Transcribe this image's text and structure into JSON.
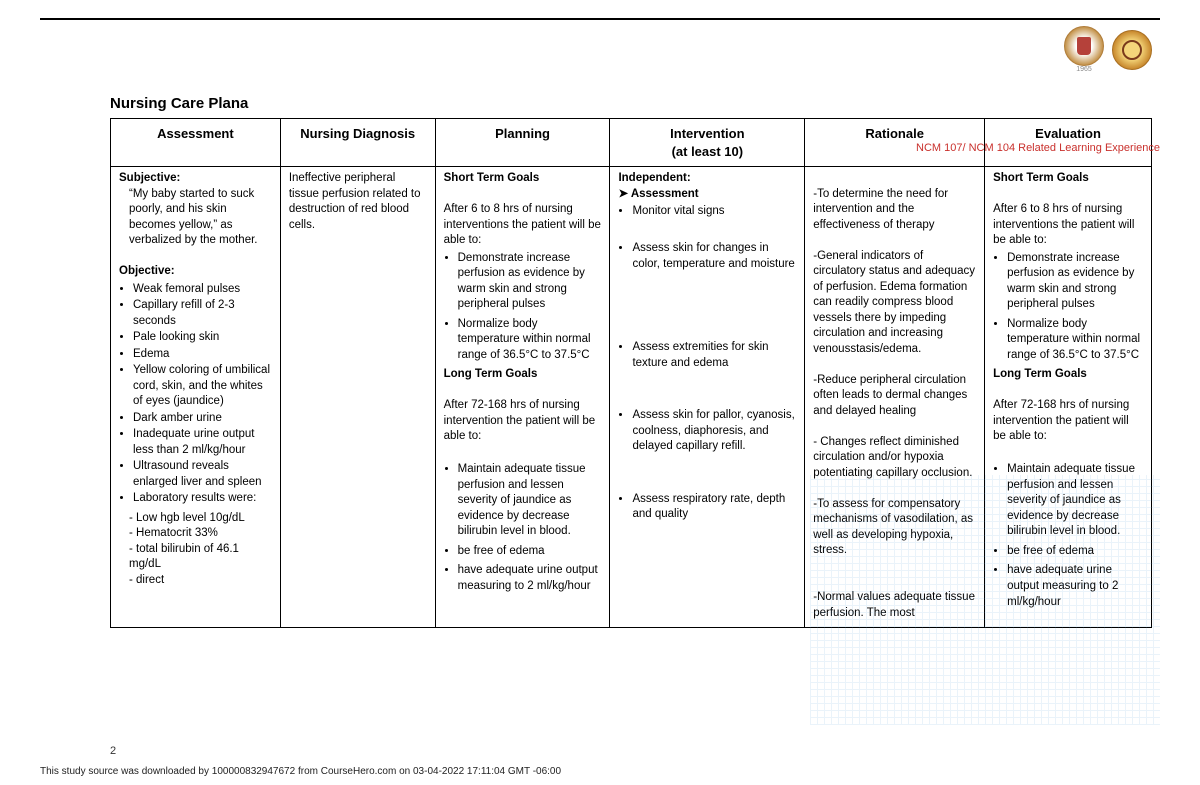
{
  "title": "Nursing Care Plana",
  "header_note": "NCM 107/ NCM 104 Related Learning Experience",
  "logo_year": "1965",
  "page_number": "2",
  "footer": "This study source was downloaded by 100000832947672 from CourseHero.com on 03-04-2022 17:11:04 GMT -06:00",
  "columns": {
    "c1": "Assessment",
    "c2": "Nursing Diagnosis",
    "c3": "Planning",
    "c4_a": "Intervention",
    "c4_b": "(at least 10)",
    "c5": "Rationale",
    "c6": "Evaluation"
  },
  "assessment": {
    "subjective_h": "Subjective:",
    "subjective": "“My baby started to suck poorly, and his skin becomes yellow,” as verbalized by the mother.",
    "objective_h": "Objective:",
    "obj": [
      "Weak femoral pulses",
      "Capillary refill of 2-3 seconds",
      "Pale looking skin",
      "Edema",
      "Yellow coloring of umbilical cord, skin, and the whites of eyes (jaundice)",
      "Dark amber urine",
      "Inadequate urine output less than 2 ml/kg/hour",
      "Ultrasound reveals enlarged liver and spleen",
      "Laboratory results were:"
    ],
    "labs": [
      "- Low hgb level 10g/dL",
      "- Hematocrit 33%",
      "- total bilirubin of 46.1 mg/dL",
      "- direct"
    ]
  },
  "diagnosis": "Ineffective peripheral tissue perfusion related to destruction of red blood cells.",
  "planning": {
    "st_h": "Short Term Goals",
    "st_intro": "After 6 to 8 hrs of nursing interventions the patient will be able to:",
    "st": [
      "Demonstrate increase perfusion as evidence by warm skin and strong peripheral pulses",
      "Normalize body temperature within normal range of 36.5°C to 37.5°C"
    ],
    "lt_h": "Long Term Goals",
    "lt_intro": "After 72-168 hrs of nursing intervention the patient will be able to:",
    "lt": [
      "Maintain adequate tissue perfusion and lessen severity of jaundice as evidence by decrease bilirubin level in blood.",
      "be free of edema",
      "have adequate urine output measuring to 2 ml/kg/hour"
    ]
  },
  "intervention": {
    "ind_h": "Independent:",
    "ind_sub": "Assessment",
    "items": [
      "Monitor vital signs",
      "Assess skin for changes in color, temperature and moisture",
      "Assess extremities for skin texture and edema",
      "Assess skin for pallor, cyanosis, coolness, diaphoresis, and delayed capillary refill.",
      "Assess respiratory rate, depth and quality"
    ]
  },
  "rationale": [
    "-To determine the need for intervention and the effectiveness of therapy",
    "-General indicators of circulatory status and adequacy of perfusion. Edema formation can readily compress blood vessels there by impeding circulation and increasing venousstasis/edema.",
    "-Reduce peripheral circulation often leads to dermal changes and delayed healing",
    "- Changes reflect diminished circulation and/or hypoxia potentiating capillary occlusion.",
    "-To assess for compensatory mechanisms of vasodilation, as well as developing hypoxia, stress.",
    "-Normal values adequate tissue perfusion. The most"
  ],
  "evaluation": {
    "st_h": "Short Term Goals",
    "st_intro": "After 6 to 8 hrs of nursing interventions the patient will be able to:",
    "st": [
      "Demonstrate increase perfusion as evidence by warm skin and strong peripheral pulses",
      "Normalize body temperature within normal range of 36.5°C to 37.5°C"
    ],
    "lt_h": "Long Term Goals",
    "lt_intro": "After 72-168 hrs of nursing intervention the patient will be able to:",
    "lt": [
      "Maintain adequate tissue perfusion and lessen severity of jaundice as evidence by decrease bilirubin level in blood.",
      "be free of edema",
      "have adequate urine output measuring to 2 ml/kg/hour"
    ]
  }
}
